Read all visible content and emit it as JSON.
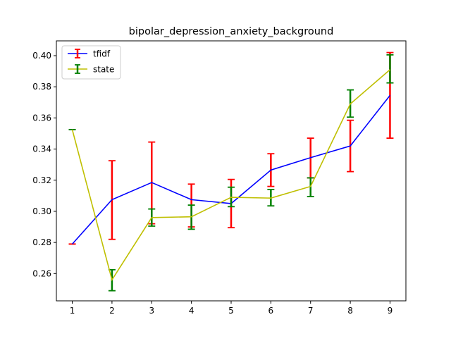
{
  "chart_data": {
    "type": "line",
    "title": "bipolar_depression_anxiety_background",
    "xlabel": "",
    "ylabel": "",
    "x": [
      1,
      2,
      3,
      4,
      5,
      6,
      7,
      8,
      9
    ],
    "xlim": [
      0.6,
      9.4
    ],
    "ylim": [
      0.2425,
      0.4095
    ],
    "x_ticks": [
      1,
      2,
      3,
      4,
      5,
      6,
      7,
      8,
      9
    ],
    "y_ticks": [
      "0.26",
      "0.28",
      "0.30",
      "0.32",
      "0.34",
      "0.36",
      "0.38",
      "0.40"
    ],
    "grid": false,
    "legend_position": "top-left",
    "series": [
      {
        "name": "tfidf",
        "line_color": "#0000ff",
        "errorbar_color": "#ff0000",
        "values": [
          0.279,
          0.3075,
          0.3185,
          0.3075,
          0.305,
          0.3265,
          0.3345,
          0.342,
          0.3745
        ],
        "err_low": [
          0.279,
          0.282,
          0.292,
          0.29,
          0.2895,
          0.316,
          0.3215,
          0.3255,
          0.347
        ],
        "err_high": [
          0.279,
          0.3325,
          0.3445,
          0.3175,
          0.3205,
          0.337,
          0.347,
          0.3585,
          0.402
        ]
      },
      {
        "name": "state",
        "line_color": "#bfbf00",
        "errorbar_color": "#008000",
        "values": [
          0.3525,
          0.256,
          0.296,
          0.2965,
          0.309,
          0.3085,
          0.316,
          0.369,
          0.391
        ],
        "err_low": [
          0.3525,
          0.249,
          0.2905,
          0.2885,
          0.303,
          0.3035,
          0.3095,
          0.3605,
          0.3825
        ],
        "err_high": [
          0.3525,
          0.2625,
          0.3015,
          0.304,
          0.3155,
          0.314,
          0.3215,
          0.378,
          0.4005
        ]
      }
    ]
  }
}
